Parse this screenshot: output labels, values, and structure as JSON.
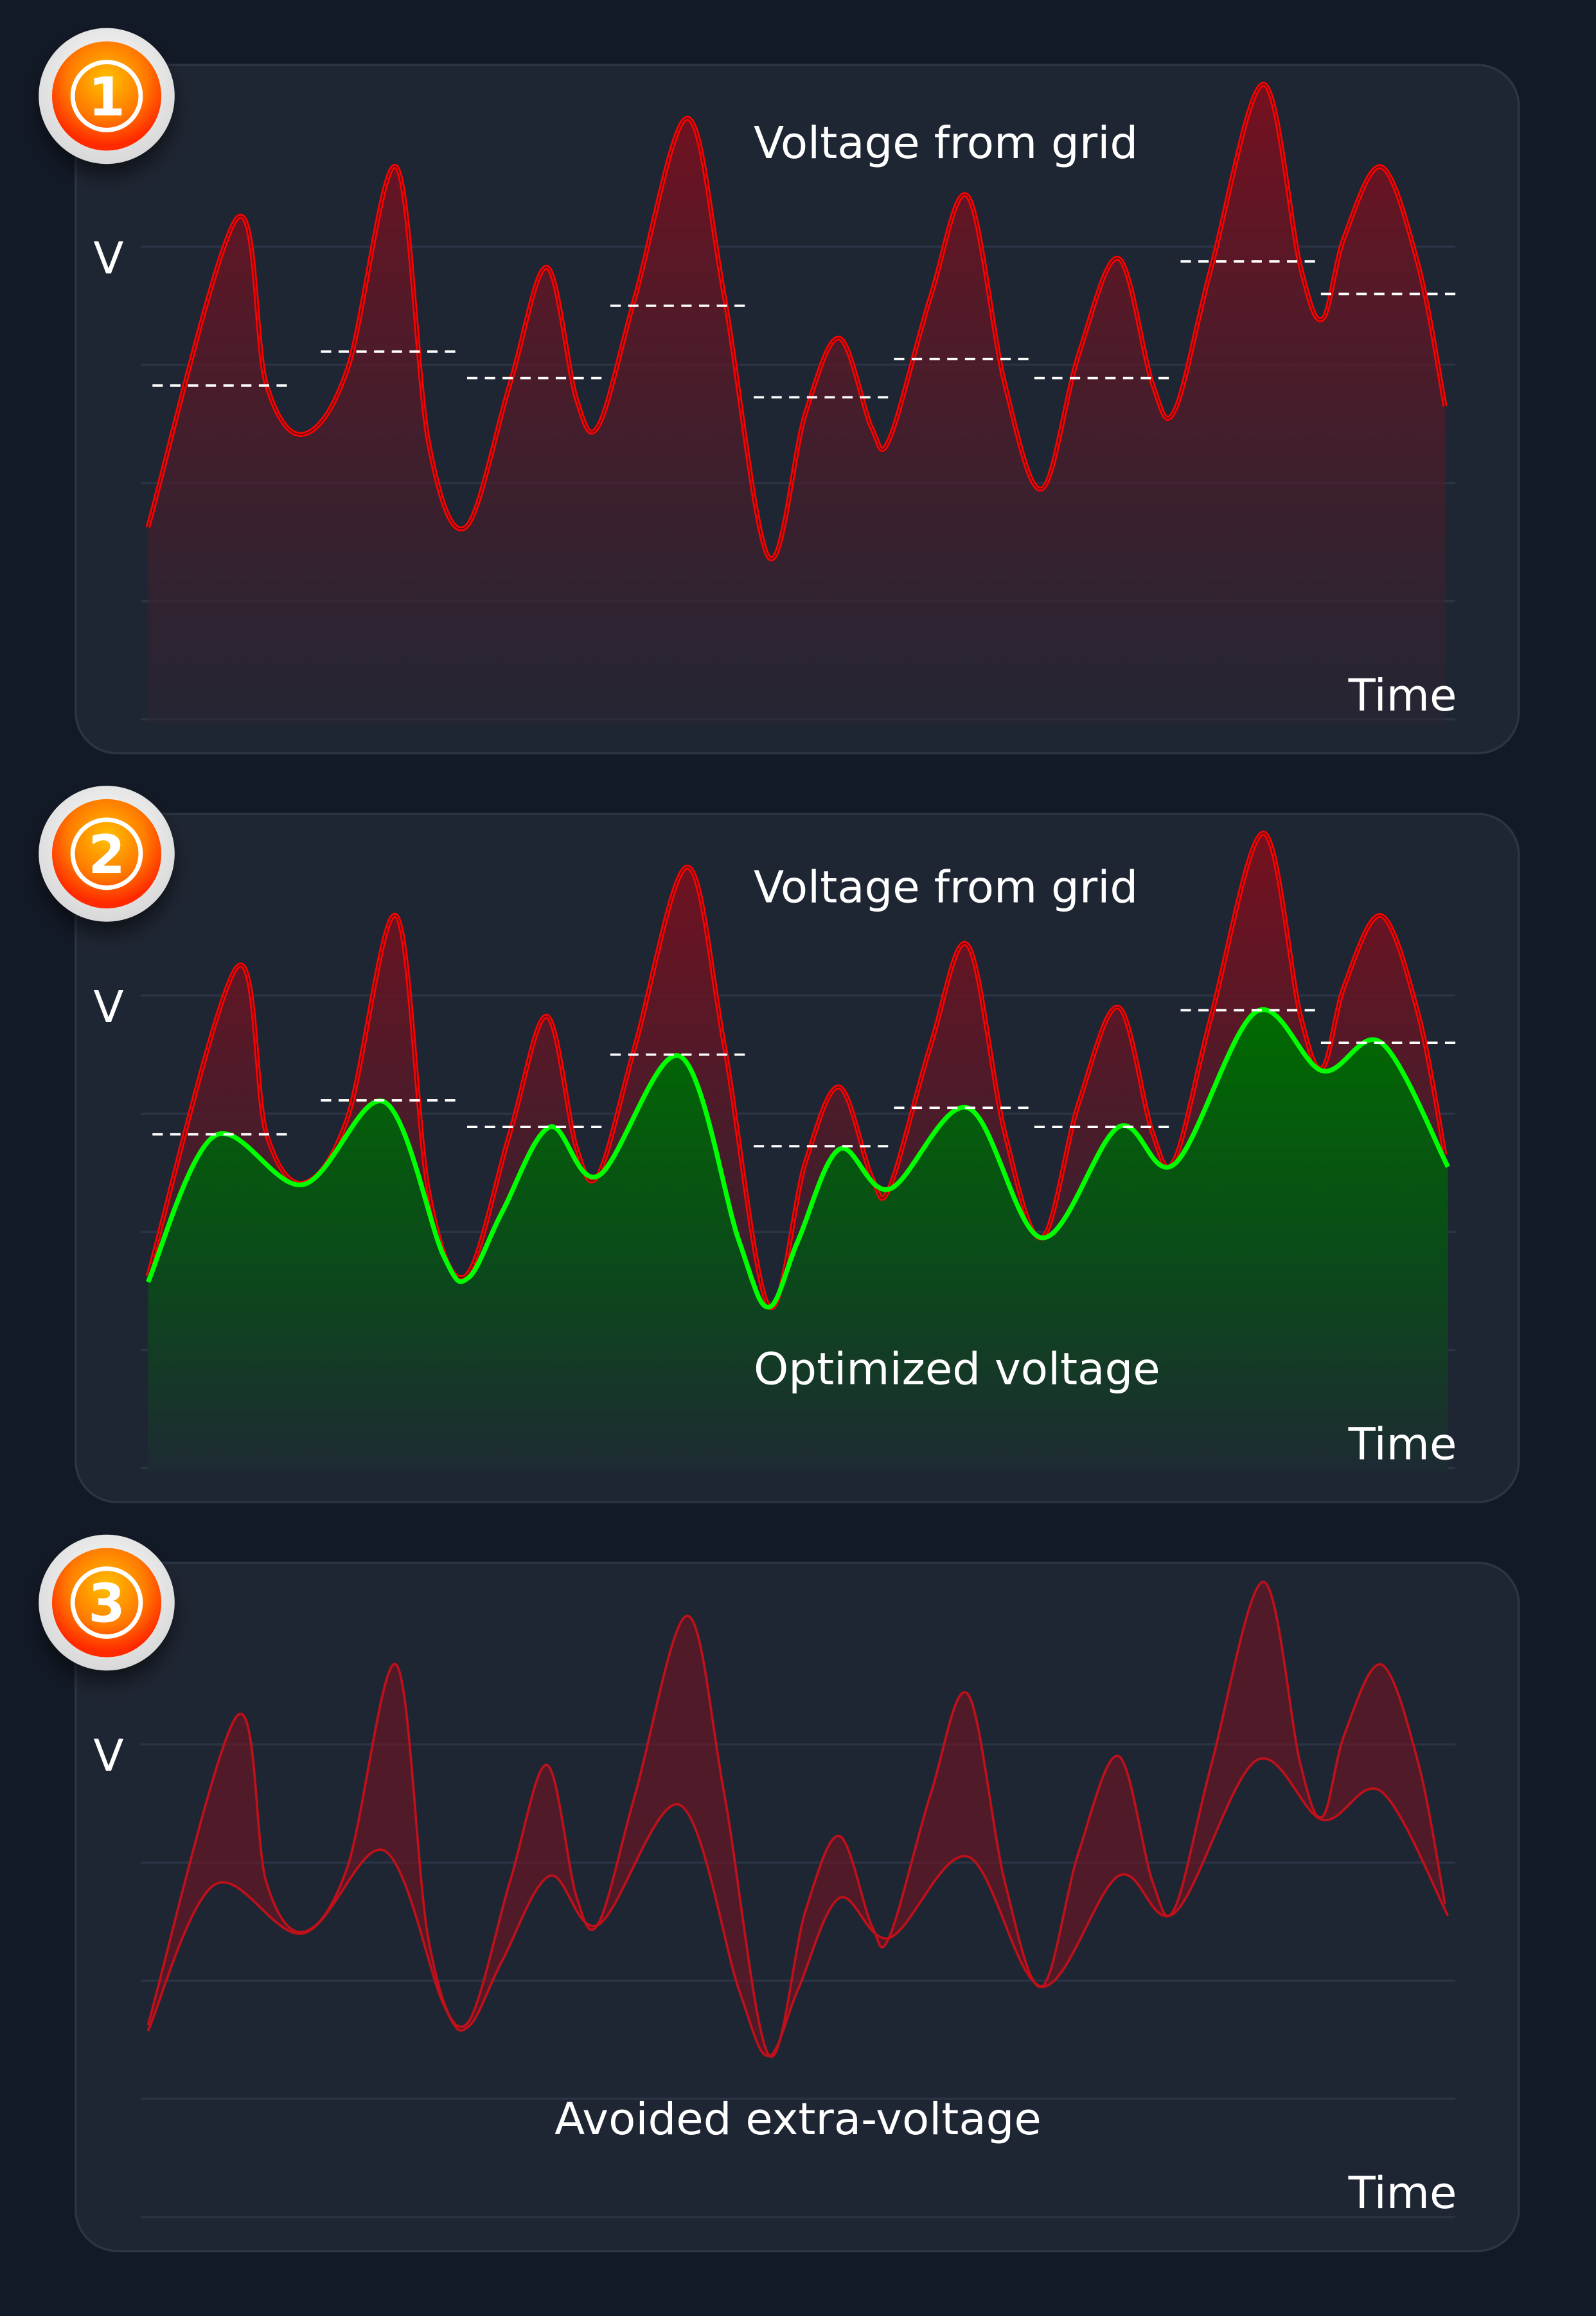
{
  "panels": [
    {
      "step": "1",
      "y_label": "V",
      "x_label": "Time",
      "curve_label": "Voltage from grid"
    },
    {
      "step": "2",
      "y_label": "V",
      "x_label": "Time",
      "curve_label": "Voltage from grid",
      "optimized_label": "Optimized voltage"
    },
    {
      "step": "3",
      "y_label": "V",
      "x_label": "Time",
      "avoided_label": "Avoided extra-voltage"
    }
  ],
  "colors": {
    "background": "#131a27",
    "panel": "#1f2633",
    "grid_voltage": "#ff0000",
    "optimized_voltage": "#00ff00",
    "badge": "#ff7a00"
  }
}
